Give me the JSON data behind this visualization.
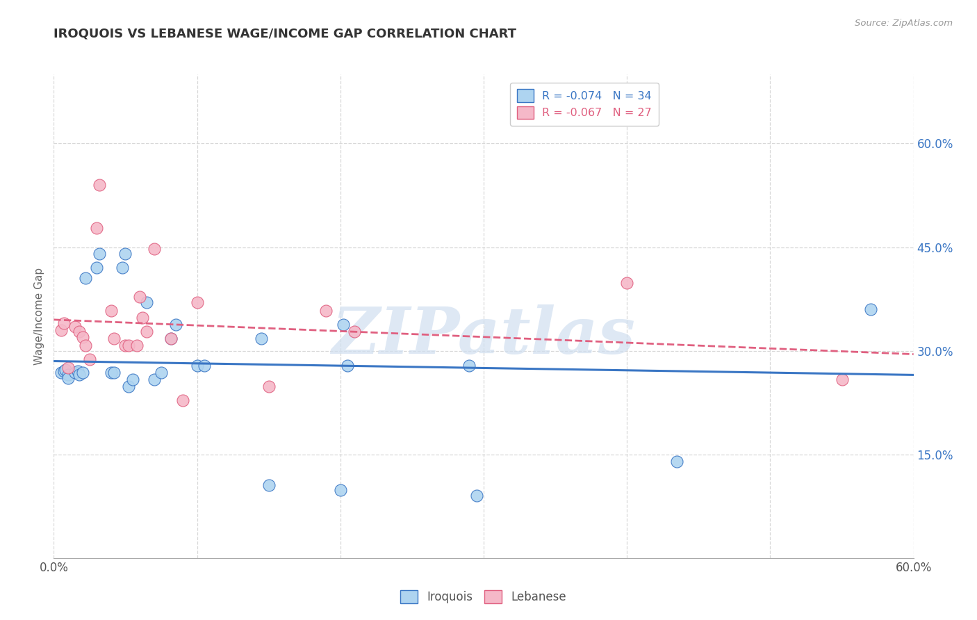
{
  "title": "IROQUOIS VS LEBANESE WAGE/INCOME GAP CORRELATION CHART",
  "source": "Source: ZipAtlas.com",
  "ylabel": "Wage/Income Gap",
  "xlim": [
    0.0,
    0.6
  ],
  "ylim": [
    0.0,
    0.7
  ],
  "xtick_vals": [
    0.0,
    0.1,
    0.2,
    0.3,
    0.4,
    0.5,
    0.6
  ],
  "xtick_labels_bottom": [
    "0.0%",
    "",
    "",
    "",
    "",
    "",
    "60.0%"
  ],
  "ytick_vals": [
    0.15,
    0.3,
    0.45,
    0.6
  ],
  "ytick_labels": [
    "15.0%",
    "30.0%",
    "45.0%",
    "60.0%"
  ],
  "legend_line1": "R = -0.074   N = 34",
  "legend_line2": "R = -0.067   N = 27",
  "iroquois_color": "#AED4F0",
  "lebanese_color": "#F5B8C8",
  "iroquois_line_color": "#3A76C4",
  "lebanese_line_color": "#E06080",
  "background_color": "#ffffff",
  "grid_color": "#d8d8d8",
  "watermark": "ZIPatlas",
  "watermark_color": "#d0dff0",
  "iroquois_x": [
    0.005,
    0.007,
    0.008,
    0.01,
    0.01,
    0.015,
    0.017,
    0.018,
    0.02,
    0.022,
    0.03,
    0.032,
    0.04,
    0.042,
    0.048,
    0.05,
    0.052,
    0.055,
    0.065,
    0.07,
    0.075,
    0.082,
    0.085,
    0.1,
    0.105,
    0.145,
    0.15,
    0.2,
    0.202,
    0.205,
    0.29,
    0.295,
    0.435,
    0.57
  ],
  "iroquois_y": [
    0.268,
    0.27,
    0.272,
    0.265,
    0.26,
    0.268,
    0.27,
    0.265,
    0.268,
    0.405,
    0.42,
    0.44,
    0.268,
    0.268,
    0.42,
    0.44,
    0.248,
    0.258,
    0.37,
    0.258,
    0.268,
    0.318,
    0.338,
    0.278,
    0.278,
    0.318,
    0.105,
    0.098,
    0.338,
    0.278,
    0.278,
    0.09,
    0.14,
    0.36
  ],
  "lebanese_x": [
    0.005,
    0.007,
    0.01,
    0.015,
    0.018,
    0.02,
    0.022,
    0.025,
    0.03,
    0.032,
    0.04,
    0.042,
    0.05,
    0.052,
    0.058,
    0.06,
    0.062,
    0.065,
    0.07,
    0.082,
    0.09,
    0.1,
    0.15,
    0.19,
    0.21,
    0.4,
    0.55
  ],
  "lebanese_y": [
    0.33,
    0.34,
    0.275,
    0.335,
    0.328,
    0.32,
    0.308,
    0.288,
    0.478,
    0.54,
    0.358,
    0.318,
    0.308,
    0.308,
    0.308,
    0.378,
    0.348,
    0.328,
    0.448,
    0.318,
    0.228,
    0.37,
    0.248,
    0.358,
    0.328,
    0.398,
    0.258
  ]
}
